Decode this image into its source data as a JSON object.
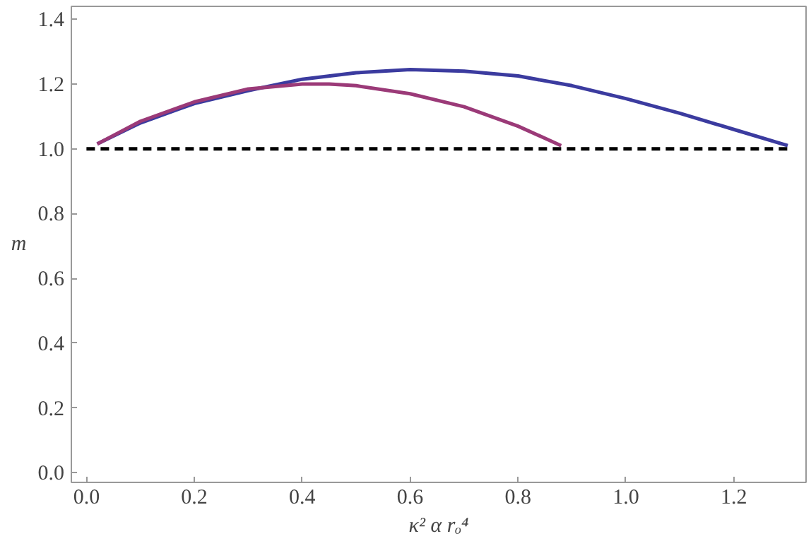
{
  "chart_data": {
    "type": "line",
    "xlabel": "κ² α rₒ⁴",
    "ylabel": "m",
    "xlim": [
      -0.028,
      1.334
    ],
    "ylim": [
      -0.03,
      1.44
    ],
    "xticks": [
      {
        "value": 0,
        "label": "0.0"
      },
      0.2,
      0.4,
      0.6,
      0.8,
      {
        "value": 1,
        "label": "1.0"
      },
      1.2
    ],
    "yticks": [
      {
        "value": 0,
        "label": "0.0"
      },
      0.2,
      0.4,
      0.6,
      0.8,
      {
        "value": 1,
        "label": "1.0"
      },
      1.2,
      1.4
    ],
    "grid": false,
    "series": [
      {
        "color": "#3b3b9f",
        "x": [
          0.02,
          0.1,
          0.2,
          0.3,
          0.4,
          0.5,
          0.6,
          0.7,
          0.8,
          0.9,
          1.0,
          1.1,
          1.2,
          1.3
        ],
        "values": [
          1.015,
          1.08,
          1.14,
          1.18,
          1.215,
          1.235,
          1.245,
          1.24,
          1.225,
          1.195,
          1.155,
          1.11,
          1.06,
          1.01
        ]
      },
      {
        "color": "#9b3a78",
        "x": [
          0.02,
          0.1,
          0.2,
          0.3,
          0.4,
          0.45,
          0.5,
          0.6,
          0.7,
          0.8,
          0.88
        ],
        "values": [
          1.015,
          1.085,
          1.145,
          1.185,
          1.2,
          1.2,
          1.195,
          1.17,
          1.13,
          1.07,
          1.01
        ]
      },
      {
        "color": "#000000",
        "line_style": "dashed",
        "x": [
          0,
          1.3
        ],
        "values": [
          1,
          1
        ]
      }
    ]
  }
}
